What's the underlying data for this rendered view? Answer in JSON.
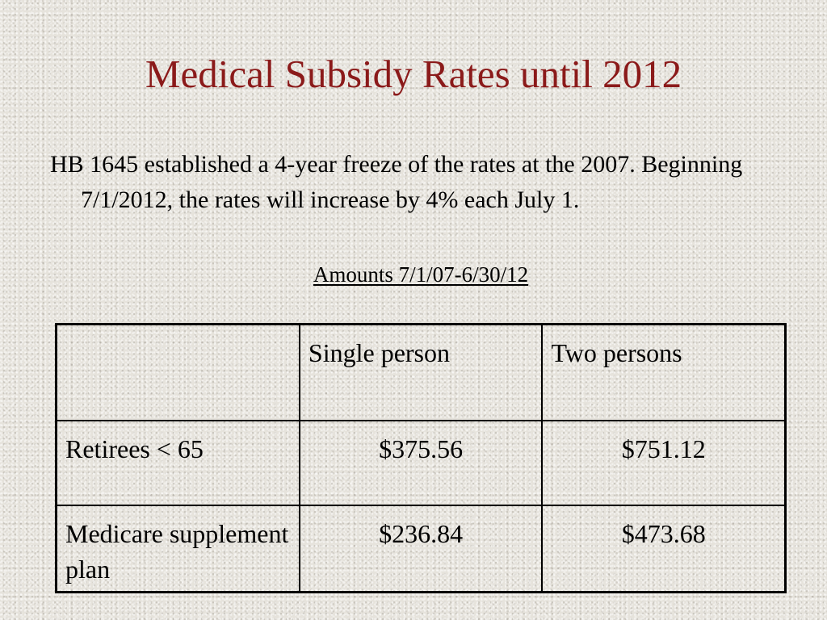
{
  "slide": {
    "title": "Medical Subsidy Rates until 2012",
    "bullet": "HB 1645 established a 4-year freeze of the rates at the 2007. Beginning 7/1/2012, the rates will increase by 4% each July 1.",
    "subheading": "Amounts 7/1/07-6/30/12"
  },
  "table": {
    "headers": [
      "",
      "Single person",
      "Two persons"
    ],
    "rows": [
      {
        "label": "Retirees < 65",
        "single": "$375.56",
        "two": "$751.12"
      },
      {
        "label": "Medicare supplement plan",
        "single": "$236.84",
        "two": "$473.68"
      }
    ]
  },
  "colors": {
    "title": "#8b1a1a",
    "text": "#000000",
    "background": "#e6e3dc"
  }
}
